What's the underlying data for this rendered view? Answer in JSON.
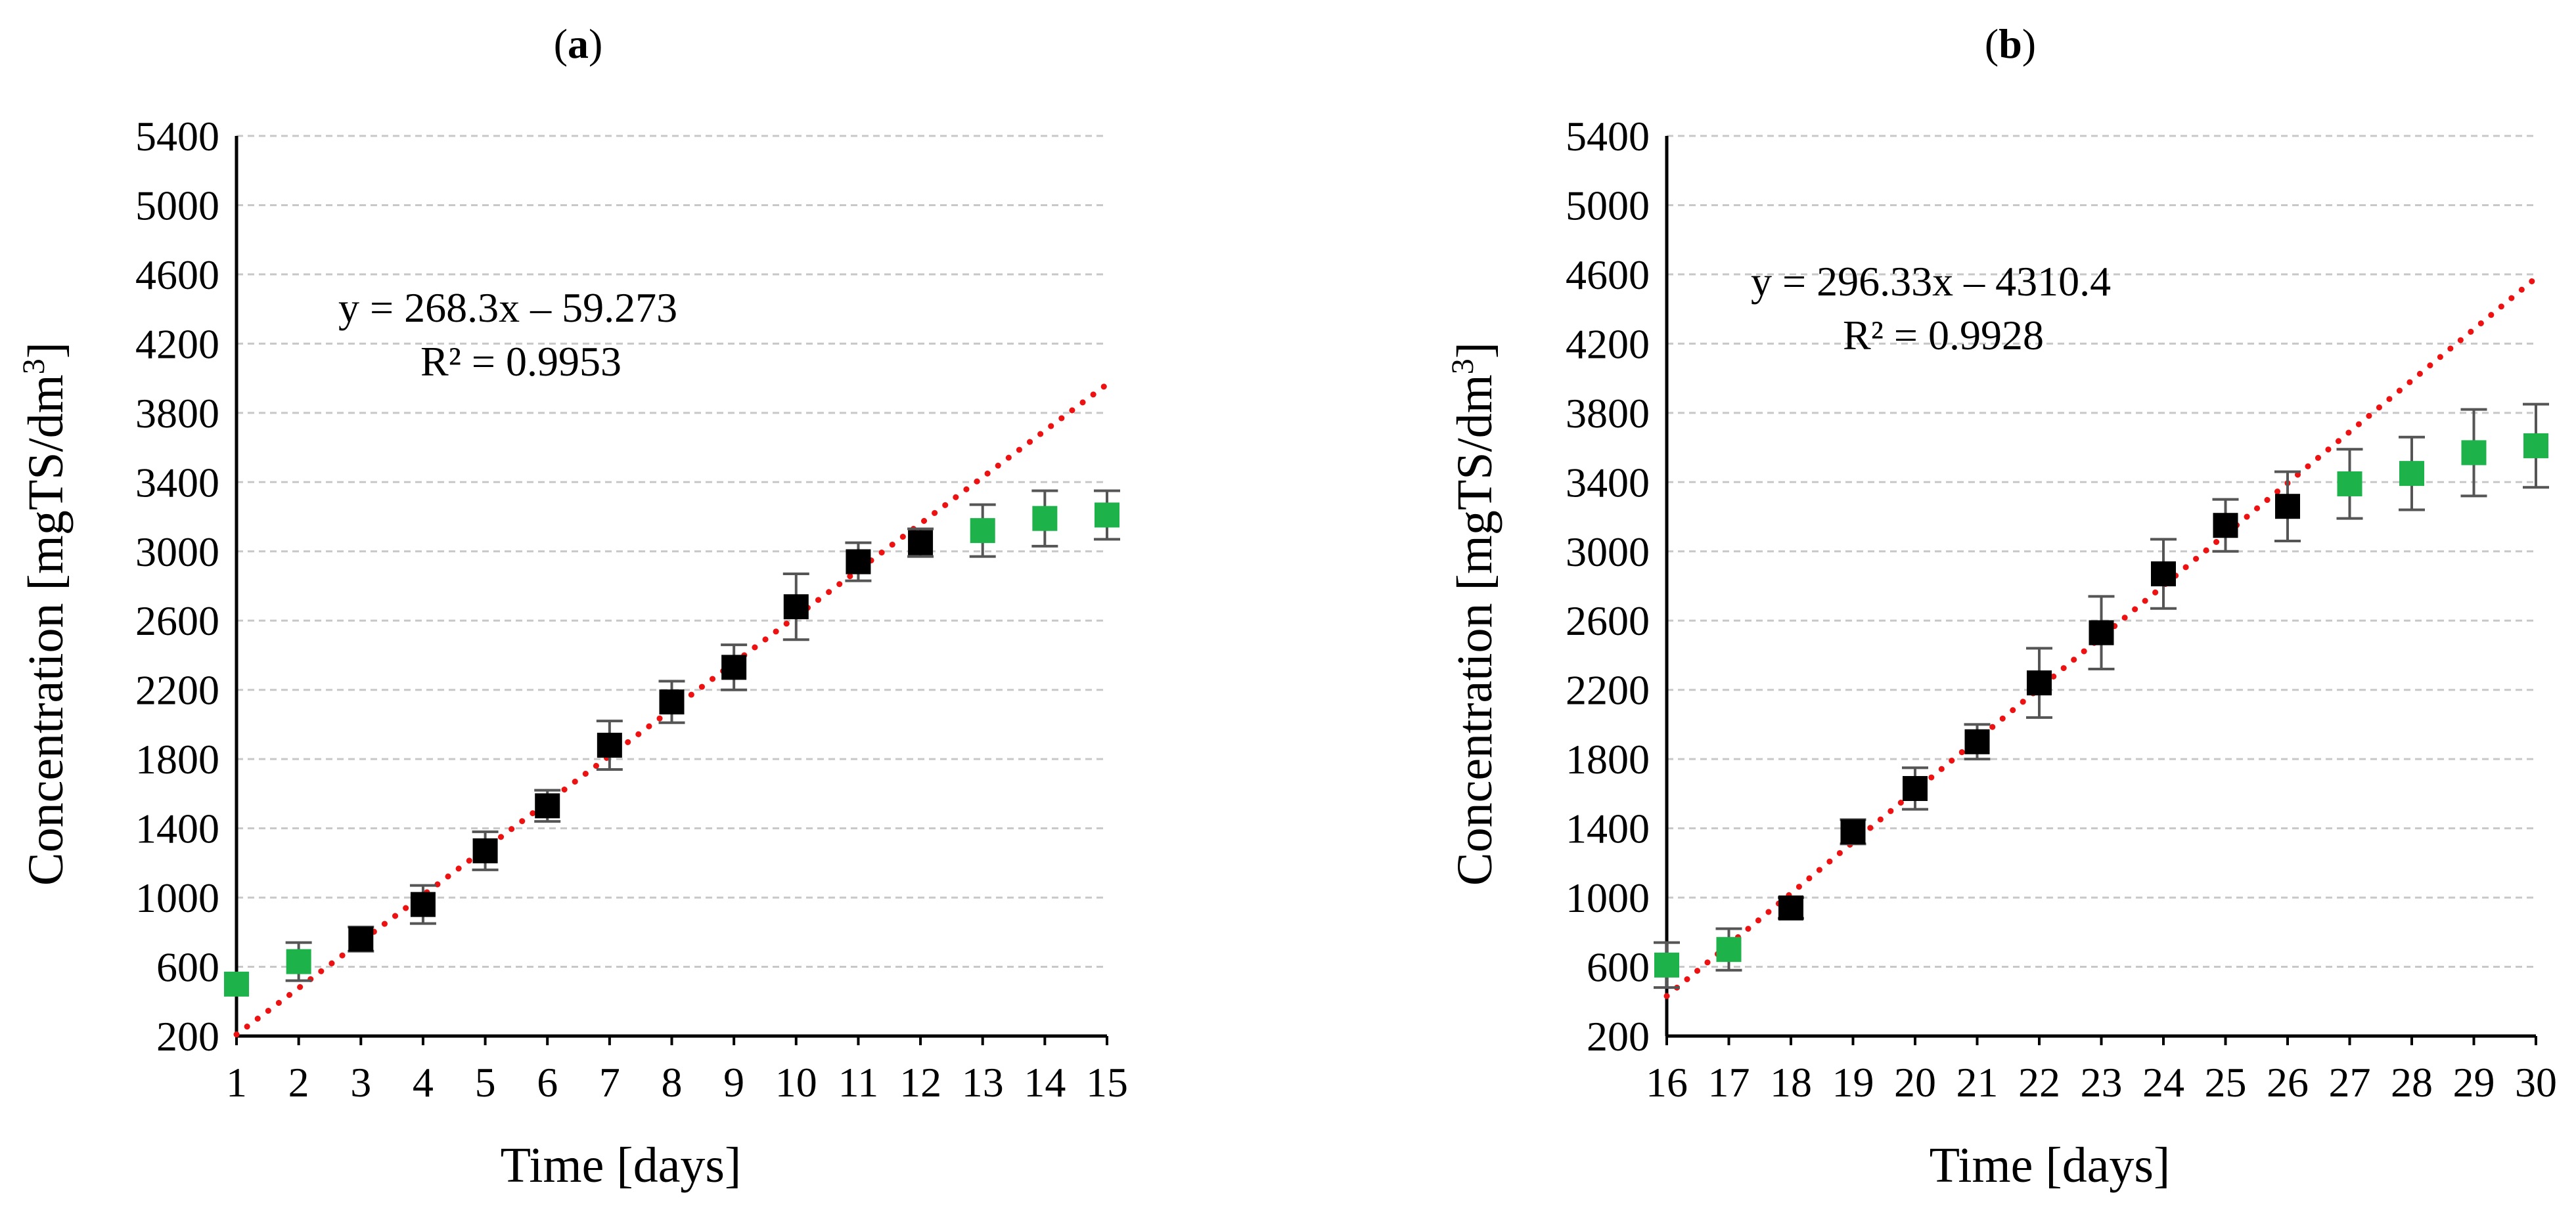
{
  "colors": {
    "measured_marker": "#000000",
    "excluded_marker": "#1db34a",
    "trendline": "#ee1111",
    "error_bar": "#555555",
    "grid": "#c8c8c8",
    "axis": "#000000"
  },
  "chart_data": [
    {
      "type": "scatter",
      "panel_label_prefix": "(",
      "panel_label_letter": "a",
      "panel_label_suffix": ")",
      "xlabel": "Time [days]",
      "ylabel_main": "Concentration [mgTS/dm",
      "ylabel_sup": "3",
      "ylabel_end": "]",
      "xlim": [
        1,
        15
      ],
      "ylim": [
        200,
        5400
      ],
      "x_ticks": [
        "1",
        "2",
        "3",
        "4",
        "5",
        "6",
        "7",
        "8",
        "9",
        "10",
        "11",
        "12",
        "13",
        "14",
        "15"
      ],
      "y_ticks": [
        "200",
        "600",
        "1000",
        "1400",
        "1800",
        "2200",
        "2600",
        "3000",
        "3400",
        "3800",
        "4200",
        "4600",
        "5000",
        "5400"
      ],
      "grid": "horizontal dashed",
      "equation": "y = 268.3x – 59.273",
      "r_squared": "R² = 0.9953",
      "trendline": {
        "slope": 268.3,
        "intercept": -59.273
      },
      "series": [
        {
          "marker": "black square",
          "points": [
            {
              "x": 3,
              "y": 760,
              "err": 70
            },
            {
              "x": 4,
              "y": 960,
              "err": 110
            },
            {
              "x": 5,
              "y": 1270,
              "err": 110
            },
            {
              "x": 6,
              "y": 1530,
              "err": 90
            },
            {
              "x": 7,
              "y": 1880,
              "err": 140
            },
            {
              "x": 8,
              "y": 2130,
              "err": 120
            },
            {
              "x": 9,
              "y": 2330,
              "err": 130
            },
            {
              "x": 10,
              "y": 2680,
              "err": 190
            },
            {
              "x": 11,
              "y": 2940,
              "err": 110
            },
            {
              "x": 12,
              "y": 3050,
              "err": 80
            }
          ]
        },
        {
          "marker": "green square",
          "points": [
            {
              "x": 1,
              "y": 500,
              "err": 0
            },
            {
              "x": 2,
              "y": 630,
              "err": 110
            },
            {
              "x": 13,
              "y": 3120,
              "err": 150
            },
            {
              "x": 14,
              "y": 3190,
              "err": 160
            },
            {
              "x": 15,
              "y": 3210,
              "err": 140
            }
          ]
        }
      ]
    },
    {
      "type": "scatter",
      "panel_label_prefix": "(",
      "panel_label_letter": "b",
      "panel_label_suffix": ")",
      "xlabel": "Time [days]",
      "ylabel_main": "Concentration [mgTS/dm",
      "ylabel_sup": "3",
      "ylabel_end": "]",
      "xlim": [
        16,
        30
      ],
      "ylim": [
        200,
        5400
      ],
      "x_ticks": [
        "16",
        "17",
        "18",
        "19",
        "20",
        "21",
        "22",
        "23",
        "24",
        "25",
        "26",
        "27",
        "28",
        "29",
        "30"
      ],
      "y_ticks": [
        "200",
        "600",
        "1000",
        "1400",
        "1800",
        "2200",
        "2600",
        "3000",
        "3400",
        "3800",
        "4200",
        "4600",
        "5000",
        "5400"
      ],
      "grid": "horizontal dashed",
      "equation": "y = 296.33x – 4310.4",
      "r_squared": "R² = 0.9928",
      "trendline": {
        "slope": 296.33,
        "intercept": -4310.4
      },
      "series": [
        {
          "marker": "black square",
          "points": [
            {
              "x": 18,
              "y": 940,
              "err": 60
            },
            {
              "x": 19,
              "y": 1380,
              "err": 70
            },
            {
              "x": 20,
              "y": 1630,
              "err": 120
            },
            {
              "x": 21,
              "y": 1900,
              "err": 100
            },
            {
              "x": 22,
              "y": 2240,
              "err": 200
            },
            {
              "x": 23,
              "y": 2530,
              "err": 210
            },
            {
              "x": 24,
              "y": 2870,
              "err": 200
            },
            {
              "x": 25,
              "y": 3150,
              "err": 150
            },
            {
              "x": 26,
              "y": 3260,
              "err": 200
            }
          ]
        },
        {
          "marker": "green square",
          "points": [
            {
              "x": 16,
              "y": 610,
              "err": 130
            },
            {
              "x": 17,
              "y": 700,
              "err": 120
            },
            {
              "x": 27,
              "y": 3390,
              "err": 200
            },
            {
              "x": 28,
              "y": 3450,
              "err": 210
            },
            {
              "x": 29,
              "y": 3570,
              "err": 250
            },
            {
              "x": 30,
              "y": 3610,
              "err": 240
            }
          ]
        }
      ]
    }
  ]
}
